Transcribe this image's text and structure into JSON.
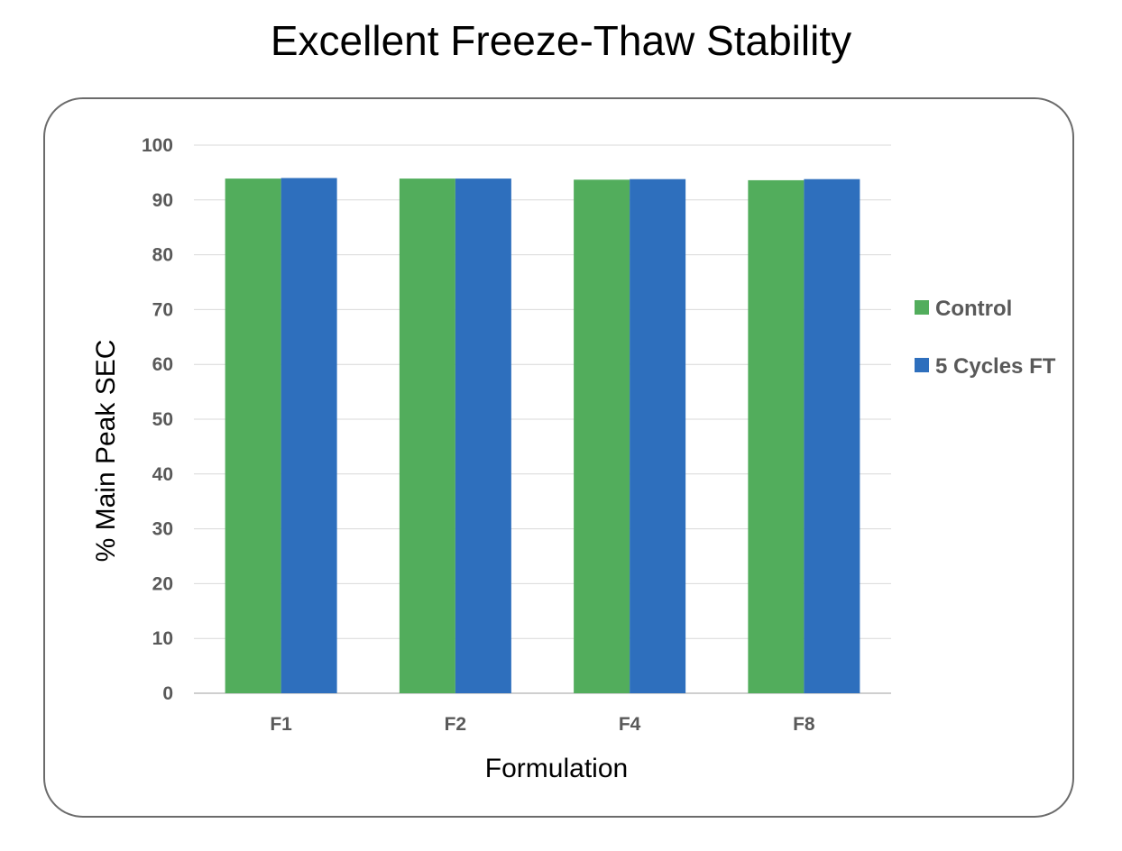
{
  "chart_data": {
    "type": "bar",
    "title": "Excellent Freeze-Thaw Stability",
    "xlabel": "Formulation",
    "ylabel": "% Main Peak SEC",
    "categories": [
      "F1",
      "F2",
      "F4",
      "F8"
    ],
    "series": [
      {
        "name": "Control",
        "color": "#52ad5c",
        "values": [
          93.9,
          93.9,
          93.7,
          93.6
        ]
      },
      {
        "name": "5 Cycles FT",
        "color": "#2e6fbd",
        "values": [
          94.0,
          93.9,
          93.8,
          93.8
        ]
      }
    ],
    "ylim": [
      0,
      100
    ],
    "yticks": [
      0,
      10,
      20,
      30,
      40,
      50,
      60,
      70,
      80,
      90,
      100
    ],
    "grid": true,
    "legend": "right"
  }
}
